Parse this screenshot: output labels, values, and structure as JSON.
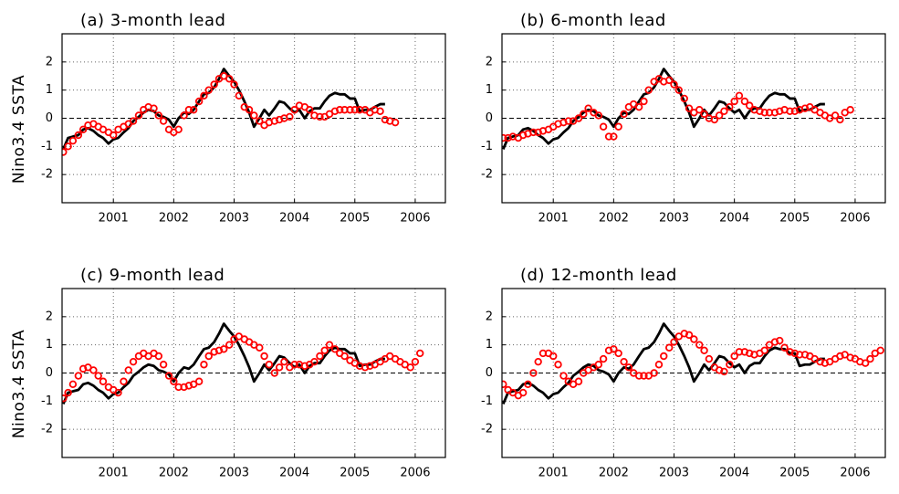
{
  "chart_data": [
    {
      "type": "line",
      "title": "(a) 3-month lead",
      "ylabel": "Nino3.4 SSTA",
      "x": [
        2000.17,
        2000.25,
        2000.33,
        2000.42,
        2000.5,
        2000.58,
        2000.67,
        2000.75,
        2000.83,
        2000.92,
        2001.0,
        2001.08,
        2001.17,
        2001.25,
        2001.33,
        2001.42,
        2001.5,
        2001.58,
        2001.67,
        2001.75,
        2001.83,
        2001.92,
        2002.0,
        2002.08,
        2002.17,
        2002.25,
        2002.33,
        2002.42,
        2002.5,
        2002.58,
        2002.67,
        2002.75,
        2002.83,
        2002.92,
        2003.0,
        2003.08,
        2003.17,
        2003.25,
        2003.33,
        2003.42,
        2003.5,
        2003.58,
        2003.67,
        2003.75,
        2003.83,
        2003.92,
        2004.0,
        2004.08,
        2004.17,
        2004.25,
        2004.33,
        2004.42,
        2004.5,
        2004.58,
        2004.67,
        2004.75,
        2004.83,
        2004.92,
        2005.0,
        2005.08,
        2005.17,
        2005.25,
        2005.33,
        2005.42,
        2005.5,
        2005.58,
        2005.67,
        2005.75,
        2005.83,
        2005.92,
        2006.0,
        2006.08,
        2006.17,
        2006.25,
        2006.33,
        2006.42
      ],
      "series": [
        {
          "color": "#000000",
          "values": [
            -1.1,
            -0.7,
            -0.65,
            -0.6,
            -0.4,
            -0.35,
            -0.45,
            -0.6,
            -0.7,
            -0.9,
            -0.75,
            -0.7,
            -0.5,
            -0.35,
            -0.1,
            0.05,
            0.2,
            0.3,
            0.25,
            0.1,
            0.05,
            -0.05,
            -0.3,
            0,
            0.2,
            0.15,
            0.3,
            0.6,
            0.85,
            0.9,
            1.1,
            1.4,
            1.75,
            1.5,
            1.3,
            1.0,
            0.6,
            0.2,
            -0.3,
            0,
            0.3,
            0.1,
            0.35,
            0.6,
            0.55,
            0.35,
            0.2,
            0.3,
            0,
            0.25,
            0.35,
            0.35,
            0.6,
            0.8,
            0.9,
            0.85,
            0.85,
            0.7,
            0.7,
            0.25,
            0.3,
            0.3,
            0.4,
            0.5,
            0.5,
            null,
            null,
            null,
            null,
            null,
            null,
            null,
            null,
            null,
            null,
            null
          ]
        },
        {
          "color": "#ff0000",
          "marker": "circle",
          "values": [
            -1.2,
            -1.0,
            -0.8,
            -0.6,
            -0.4,
            -0.25,
            -0.2,
            -0.3,
            -0.4,
            -0.5,
            -0.6,
            -0.4,
            -0.3,
            -0.2,
            -0.1,
            0.1,
            0.3,
            0.4,
            0.35,
            0.1,
            -0.1,
            -0.4,
            -0.5,
            -0.4,
            0.1,
            0.3,
            0.3,
            0.6,
            0.8,
            1.0,
            1.2,
            1.4,
            1.5,
            1.4,
            1.2,
            0.8,
            0.4,
            0.3,
            0.1,
            -0.1,
            -0.25,
            -0.15,
            -0.1,
            -0.05,
            0,
            0.05,
            0.3,
            0.45,
            0.4,
            0.3,
            0.1,
            0.05,
            0.05,
            0.15,
            0.25,
            0.3,
            0.3,
            0.3,
            0.3,
            0.3,
            0.3,
            0.2,
            0.3,
            0.25,
            -0.05,
            -0.1,
            -0.15,
            null,
            null,
            null,
            null,
            null,
            null,
            null,
            null,
            null
          ]
        }
      ],
      "xlim": [
        2000.15,
        2006.5
      ],
      "xticks": [
        2001,
        2002,
        2003,
        2004,
        2005,
        2006
      ],
      "ylim": [
        -3,
        3
      ],
      "yticks": [
        -2,
        -1,
        0,
        1,
        2
      ],
      "grid": true,
      "zero_line": true
    },
    {
      "type": "line",
      "title": "(b) 6-month lead",
      "x": [
        2000.17,
        2000.25,
        2000.33,
        2000.42,
        2000.5,
        2000.58,
        2000.67,
        2000.75,
        2000.83,
        2000.92,
        2001.0,
        2001.08,
        2001.17,
        2001.25,
        2001.33,
        2001.42,
        2001.5,
        2001.58,
        2001.67,
        2001.75,
        2001.83,
        2001.92,
        2002.0,
        2002.08,
        2002.17,
        2002.25,
        2002.33,
        2002.42,
        2002.5,
        2002.58,
        2002.67,
        2002.75,
        2002.83,
        2002.92,
        2003.0,
        2003.08,
        2003.17,
        2003.25,
        2003.33,
        2003.42,
        2003.5,
        2003.58,
        2003.67,
        2003.75,
        2003.83,
        2003.92,
        2004.0,
        2004.08,
        2004.17,
        2004.25,
        2004.33,
        2004.42,
        2004.5,
        2004.58,
        2004.67,
        2004.75,
        2004.83,
        2004.92,
        2005.0,
        2005.08,
        2005.17,
        2005.25,
        2005.33,
        2005.42,
        2005.5,
        2005.58,
        2005.67,
        2005.75,
        2005.83,
        2005.92,
        2006.0,
        2006.08,
        2006.17,
        2006.25,
        2006.33,
        2006.42
      ],
      "series": [
        {
          "color": "#000000",
          "values": [
            -1.1,
            -0.7,
            -0.65,
            -0.6,
            -0.4,
            -0.35,
            -0.45,
            -0.6,
            -0.7,
            -0.9,
            -0.75,
            -0.7,
            -0.5,
            -0.35,
            -0.1,
            0.05,
            0.2,
            0.3,
            0.25,
            0.1,
            0.05,
            -0.05,
            -0.3,
            0,
            0.2,
            0.15,
            0.3,
            0.6,
            0.85,
            0.9,
            1.1,
            1.4,
            1.75,
            1.5,
            1.3,
            1.0,
            0.6,
            0.2,
            -0.3,
            0,
            0.3,
            0.1,
            0.35,
            0.6,
            0.55,
            0.35,
            0.2,
            0.3,
            0,
            0.25,
            0.35,
            0.35,
            0.6,
            0.8,
            0.9,
            0.85,
            0.85,
            0.7,
            0.7,
            0.25,
            0.3,
            0.3,
            0.4,
            0.5,
            0.5,
            null,
            null,
            null,
            null,
            null,
            null,
            null,
            null,
            null,
            null,
            null
          ]
        },
        {
          "color": "#ff0000",
          "marker": "circle",
          "values": [
            -0.7,
            -0.7,
            -0.65,
            -0.7,
            -0.6,
            -0.55,
            -0.5,
            -0.5,
            -0.45,
            -0.4,
            -0.3,
            -0.2,
            -0.15,
            -0.1,
            -0.1,
            0,
            0.15,
            0.35,
            0.2,
            0.1,
            -0.3,
            -0.65,
            -0.65,
            -0.3,
            0.15,
            0.4,
            0.5,
            0.4,
            0.6,
            1.0,
            1.3,
            1.4,
            1.3,
            1.35,
            1.2,
            1.0,
            0.7,
            0.35,
            0.2,
            0.3,
            0.15,
            0.0,
            -0.05,
            0.1,
            0.25,
            0.4,
            0.6,
            0.8,
            0.6,
            0.45,
            0.3,
            0.25,
            0.2,
            0.2,
            0.2,
            0.25,
            0.3,
            0.25,
            0.25,
            0.3,
            0.35,
            0.4,
            0.3,
            0.2,
            0.1,
            0.0,
            0.1,
            -0.05,
            0.2,
            0.3,
            null,
            null,
            null,
            null,
            null,
            null
          ]
        }
      ],
      "xlim": [
        2000.15,
        2006.5
      ],
      "xticks": [
        2001,
        2002,
        2003,
        2004,
        2005,
        2006
      ],
      "ylim": [
        -3,
        3
      ],
      "yticks": [
        -2,
        -1,
        0,
        1,
        2
      ],
      "grid": true,
      "zero_line": true
    },
    {
      "type": "line",
      "title": "(c) 9-month lead",
      "ylabel": "Nino3.4 SSTA",
      "x": [
        2000.17,
        2000.25,
        2000.33,
        2000.42,
        2000.5,
        2000.58,
        2000.67,
        2000.75,
        2000.83,
        2000.92,
        2001.0,
        2001.08,
        2001.17,
        2001.25,
        2001.33,
        2001.42,
        2001.5,
        2001.58,
        2001.67,
        2001.75,
        2001.83,
        2001.92,
        2002.0,
        2002.08,
        2002.17,
        2002.25,
        2002.33,
        2002.42,
        2002.5,
        2002.58,
        2002.67,
        2002.75,
        2002.83,
        2002.92,
        2003.0,
        2003.08,
        2003.17,
        2003.25,
        2003.33,
        2003.42,
        2003.5,
        2003.58,
        2003.67,
        2003.75,
        2003.83,
        2003.92,
        2004.0,
        2004.08,
        2004.17,
        2004.25,
        2004.33,
        2004.42,
        2004.5,
        2004.58,
        2004.67,
        2004.75,
        2004.83,
        2004.92,
        2005.0,
        2005.08,
        2005.17,
        2005.25,
        2005.33,
        2005.42,
        2005.5,
        2005.58,
        2005.67,
        2005.75,
        2005.83,
        2005.92,
        2006.0,
        2006.08,
        2006.17,
        2006.25,
        2006.33,
        2006.42
      ],
      "series": [
        {
          "color": "#000000",
          "values": [
            -1.1,
            -0.7,
            -0.65,
            -0.6,
            -0.4,
            -0.35,
            -0.45,
            -0.6,
            -0.7,
            -0.9,
            -0.75,
            -0.7,
            -0.5,
            -0.35,
            -0.1,
            0.05,
            0.2,
            0.3,
            0.25,
            0.1,
            0.05,
            -0.05,
            -0.3,
            0,
            0.2,
            0.15,
            0.3,
            0.6,
            0.85,
            0.9,
            1.1,
            1.4,
            1.75,
            1.5,
            1.3,
            1.0,
            0.6,
            0.2,
            -0.3,
            0,
            0.3,
            0.1,
            0.35,
            0.6,
            0.55,
            0.35,
            0.2,
            0.3,
            0,
            0.25,
            0.35,
            0.35,
            0.6,
            0.8,
            0.9,
            0.85,
            0.85,
            0.7,
            0.7,
            0.25,
            0.3,
            0.3,
            0.4,
            0.5,
            0.5,
            null,
            null,
            null,
            null,
            null,
            null,
            null,
            null,
            null,
            null,
            null
          ]
        },
        {
          "color": "#ff0000",
          "marker": "circle",
          "values": [
            -0.9,
            -0.7,
            -0.4,
            -0.1,
            0.15,
            0.2,
            0.1,
            -0.1,
            -0.3,
            -0.5,
            -0.6,
            -0.7,
            -0.3,
            0.1,
            0.4,
            0.6,
            0.7,
            0.6,
            0.7,
            0.6,
            0.3,
            -0.1,
            -0.3,
            -0.5,
            -0.5,
            -0.45,
            -0.4,
            -0.3,
            0.3,
            0.6,
            0.75,
            0.8,
            0.85,
            1.0,
            1.2,
            1.3,
            1.2,
            1.1,
            1.0,
            0.9,
            0.6,
            0.3,
            0.0,
            0.2,
            0.4,
            0.2,
            0.3,
            0.3,
            0.25,
            0.3,
            0.4,
            0.6,
            0.8,
            1.0,
            0.85,
            0.7,
            0.6,
            0.45,
            0.35,
            0.25,
            0.2,
            0.25,
            0.3,
            0.4,
            0.5,
            0.6,
            0.5,
            0.4,
            0.3,
            0.2,
            0.4,
            0.7,
            null,
            null,
            null,
            null
          ]
        }
      ],
      "xlim": [
        2000.15,
        2006.5
      ],
      "xticks": [
        2001,
        2002,
        2003,
        2004,
        2005,
        2006
      ],
      "ylim": [
        -3,
        3
      ],
      "yticks": [
        -2,
        -1,
        0,
        1,
        2
      ],
      "grid": true,
      "zero_line": true
    },
    {
      "type": "line",
      "title": "(d) 12-month lead",
      "x": [
        2000.17,
        2000.25,
        2000.33,
        2000.42,
        2000.5,
        2000.58,
        2000.67,
        2000.75,
        2000.83,
        2000.92,
        2001.0,
        2001.08,
        2001.17,
        2001.25,
        2001.33,
        2001.42,
        2001.5,
        2001.58,
        2001.67,
        2001.75,
        2001.83,
        2001.92,
        2002.0,
        2002.08,
        2002.17,
        2002.25,
        2002.33,
        2002.42,
        2002.5,
        2002.58,
        2002.67,
        2002.75,
        2002.83,
        2002.92,
        2003.0,
        2003.08,
        2003.17,
        2003.25,
        2003.33,
        2003.42,
        2003.5,
        2003.58,
        2003.67,
        2003.75,
        2003.83,
        2003.92,
        2004.0,
        2004.08,
        2004.17,
        2004.25,
        2004.33,
        2004.42,
        2004.5,
        2004.58,
        2004.67,
        2004.75,
        2004.83,
        2004.92,
        2005.0,
        2005.08,
        2005.17,
        2005.25,
        2005.33,
        2005.42,
        2005.5,
        2005.58,
        2005.67,
        2005.75,
        2005.83,
        2005.92,
        2006.0,
        2006.08,
        2006.17,
        2006.25,
        2006.33,
        2006.42
      ],
      "series": [
        {
          "color": "#000000",
          "values": [
            -1.1,
            -0.7,
            -0.65,
            -0.6,
            -0.4,
            -0.35,
            -0.45,
            -0.6,
            -0.7,
            -0.9,
            -0.75,
            -0.7,
            -0.5,
            -0.35,
            -0.1,
            0.05,
            0.2,
            0.3,
            0.25,
            0.1,
            0.05,
            -0.05,
            -0.3,
            0,
            0.2,
            0.15,
            0.3,
            0.6,
            0.85,
            0.9,
            1.1,
            1.4,
            1.75,
            1.5,
            1.3,
            1.0,
            0.6,
            0.2,
            -0.3,
            0,
            0.3,
            0.1,
            0.35,
            0.6,
            0.55,
            0.35,
            0.2,
            0.3,
            0,
            0.25,
            0.35,
            0.35,
            0.6,
            0.8,
            0.9,
            0.85,
            0.85,
            0.7,
            0.7,
            0.25,
            0.3,
            0.3,
            0.4,
            0.5,
            0.5,
            null,
            null,
            null,
            null,
            null,
            null,
            null,
            null,
            null,
            null,
            null
          ]
        },
        {
          "color": "#ff0000",
          "marker": "circle",
          "values": [
            -0.4,
            -0.6,
            -0.7,
            -0.8,
            -0.7,
            -0.4,
            0,
            0.4,
            0.7,
            0.7,
            0.6,
            0.3,
            -0.1,
            -0.3,
            -0.4,
            -0.3,
            0,
            0.1,
            0.2,
            0.3,
            0.5,
            0.8,
            0.85,
            0.7,
            0.4,
            0.2,
            0,
            -0.1,
            -0.1,
            -0.1,
            0.0,
            0.3,
            0.6,
            0.9,
            1.1,
            1.3,
            1.4,
            1.35,
            1.2,
            1.0,
            0.8,
            0.5,
            0.2,
            0.1,
            0.05,
            0.3,
            0.6,
            0.75,
            0.75,
            0.7,
            0.65,
            0.7,
            0.8,
            1.0,
            1.1,
            1.15,
            0.9,
            0.75,
            0.7,
            0.65,
            0.65,
            0.6,
            0.5,
            0.4,
            0.35,
            0.4,
            0.5,
            0.6,
            0.65,
            0.55,
            0.5,
            0.4,
            0.35,
            0.5,
            0.7,
            0.8
          ]
        }
      ],
      "xlim": [
        2000.15,
        2006.5
      ],
      "xticks": [
        2001,
        2002,
        2003,
        2004,
        2005,
        2006
      ],
      "ylim": [
        -3,
        3
      ],
      "yticks": [
        -2,
        -1,
        0,
        1,
        2
      ],
      "grid": true,
      "zero_line": true
    }
  ]
}
